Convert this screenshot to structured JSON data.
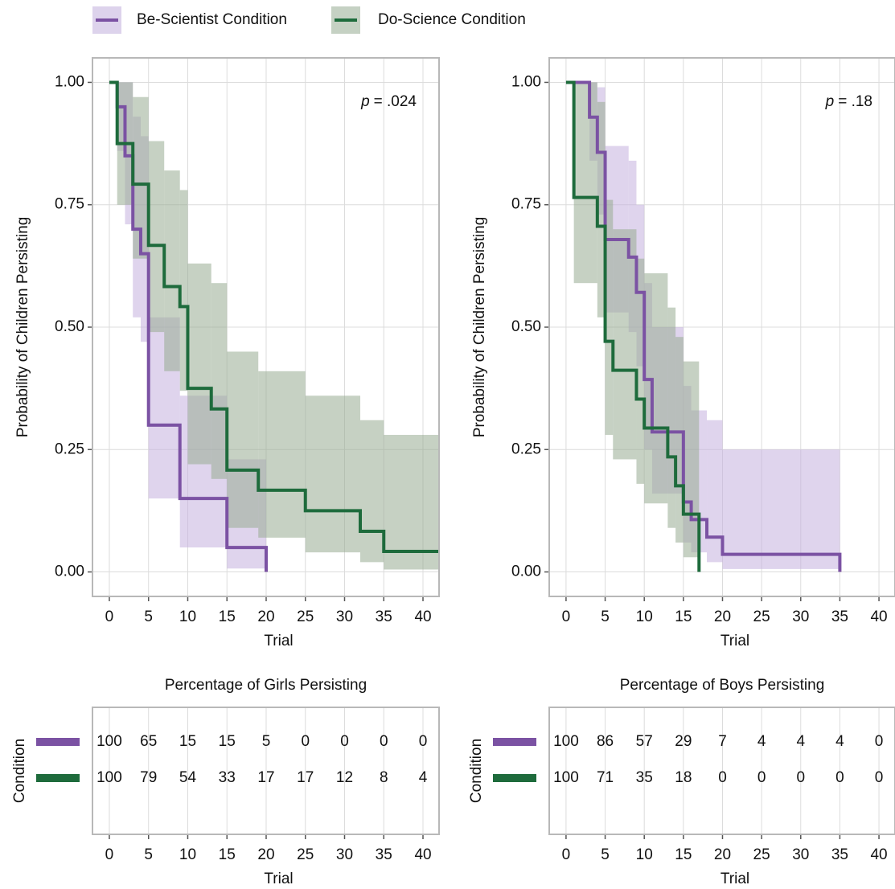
{
  "chart_data": [
    {
      "type": "survival",
      "ylabel": "Probability of Children Persisting",
      "xlabel": "Trial",
      "annotation": {
        "italic": "p",
        "text": "= .024"
      },
      "xlim": [
        -2.15,
        42.05
      ],
      "ylim": [
        -0.05,
        1.05
      ],
      "xticks": [
        0,
        5,
        10,
        15,
        20,
        25,
        30,
        35,
        40
      ],
      "yticks": [
        {
          "value": 0,
          "label": "0.00"
        },
        {
          "value": 0.25,
          "label": "0.25"
        },
        {
          "value": 0.5,
          "label": "0.50"
        },
        {
          "value": 0.75,
          "label": "0.75"
        },
        {
          "value": 1,
          "label": "1.00"
        }
      ],
      "grid": true,
      "series": [
        {
          "name": "Be-Scientist Condition",
          "color": "#7b52a3",
          "band_color": "#c4b0df",
          "x": [
            0,
            1,
            2,
            3,
            4,
            5,
            9,
            15,
            20
          ],
          "values": [
            1,
            0.95,
            0.85,
            0.7,
            0.65,
            0.3,
            0.15,
            0.05,
            0
          ],
          "lower": [
            null,
            0.86,
            0.71,
            0.52,
            0.47,
            0.15,
            0.05,
            0.007,
            null
          ],
          "upper": [
            null,
            1,
            1,
            0.93,
            0.89,
            0.52,
            0.36,
            0.23,
            null
          ]
        },
        {
          "name": "Do-Science Condition",
          "color": "#1e6b3c",
          "band_color": "#97ab92",
          "x": [
            0,
            1,
            3,
            5,
            7,
            9,
            10,
            13,
            15,
            19,
            25,
            32,
            35
          ],
          "values": [
            1,
            0.875,
            0.792,
            0.667,
            0.583,
            0.542,
            0.375,
            0.333,
            0.208,
            0.167,
            0.125,
            0.083,
            0.042
          ],
          "lower": [
            null,
            0.75,
            0.64,
            0.49,
            0.41,
            0.37,
            0.22,
            0.19,
            0.09,
            0.07,
            0.04,
            0.02,
            0.005
          ],
          "upper": [
            null,
            1,
            0.97,
            0.88,
            0.82,
            0.78,
            0.63,
            0.59,
            0.45,
            0.41,
            0.36,
            0.31,
            0.28
          ]
        }
      ]
    },
    {
      "type": "survival",
      "ylabel": "Probability of Children Persisting",
      "xlabel": "Trial",
      "annotation": {
        "italic": "p",
        "text": "= .18"
      },
      "xlim": [
        -2.15,
        42.05
      ],
      "ylim": [
        -0.05,
        1.05
      ],
      "xticks": [
        0,
        5,
        10,
        15,
        20,
        25,
        30,
        35,
        40
      ],
      "yticks": [
        {
          "value": 0,
          "label": "0.00"
        },
        {
          "value": 0.25,
          "label": "0.25"
        },
        {
          "value": 0.5,
          "label": "0.50"
        },
        {
          "value": 0.75,
          "label": "0.75"
        },
        {
          "value": 1,
          "label": "1.00"
        }
      ],
      "grid": true,
      "series": [
        {
          "name": "Be-Scientist Condition",
          "color": "#7b52a3",
          "band_color": "#c4b0df",
          "x": [
            0,
            3,
            4,
            5,
            8,
            9,
            10,
            11,
            15,
            16,
            18,
            20,
            35
          ],
          "values": [
            1,
            0.929,
            0.857,
            0.679,
            0.643,
            0.571,
            0.393,
            0.286,
            0.143,
            0.107,
            0.071,
            0.036,
            0
          ],
          "lower": [
            null,
            0.84,
            0.73,
            0.53,
            0.49,
            0.42,
            0.25,
            0.16,
            0.06,
            0.04,
            0.02,
            0.006,
            null
          ],
          "upper": [
            null,
            1,
            0.99,
            0.87,
            0.84,
            0.75,
            0.59,
            0.5,
            0.38,
            0.33,
            0.31,
            0.25,
            null
          ]
        },
        {
          "name": "Do-Science Condition",
          "color": "#1e6b3c",
          "band_color": "#97ab92",
          "x": [
            0,
            1,
            4,
            5,
            6,
            9,
            10,
            13,
            14,
            15,
            17
          ],
          "values": [
            1,
            0.765,
            0.706,
            0.471,
            0.412,
            0.353,
            0.294,
            0.235,
            0.176,
            0.118,
            0
          ],
          "lower": [
            null,
            0.59,
            0.52,
            0.28,
            0.23,
            0.18,
            0.14,
            0.09,
            0.06,
            0.03,
            null
          ],
          "upper": [
            null,
            1,
            0.96,
            0.76,
            0.7,
            0.64,
            0.61,
            0.54,
            0.48,
            0.43,
            null
          ]
        }
      ]
    },
    {
      "type": "table",
      "title": "Percentage of Girls Persisting",
      "ylabel": "Condition",
      "xlabel": "Trial",
      "xlim": [
        -2.15,
        42.05
      ],
      "xticks": [
        0,
        5,
        10,
        15,
        20,
        25,
        30,
        35,
        40
      ],
      "series": [
        {
          "color": "#7b52a3",
          "values": [
            100,
            65,
            15,
            15,
            5,
            0,
            0,
            0,
            0
          ]
        },
        {
          "color": "#1e6b3c",
          "values": [
            100,
            79,
            54,
            33,
            17,
            17,
            12,
            8,
            4
          ]
        }
      ]
    },
    {
      "type": "table",
      "title": "Percentage of Boys Persisting",
      "ylabel": "Condition",
      "xlabel": "Trial",
      "xlim": [
        -2.15,
        42.05
      ],
      "xticks": [
        0,
        5,
        10,
        15,
        20,
        25,
        30,
        35,
        40
      ],
      "series": [
        {
          "color": "#7b52a3",
          "values": [
            100,
            86,
            57,
            29,
            7,
            4,
            4,
            4,
            0
          ]
        },
        {
          "color": "#1e6b3c",
          "values": [
            100,
            71,
            35,
            18,
            0,
            0,
            0,
            0,
            0
          ]
        }
      ]
    }
  ]
}
